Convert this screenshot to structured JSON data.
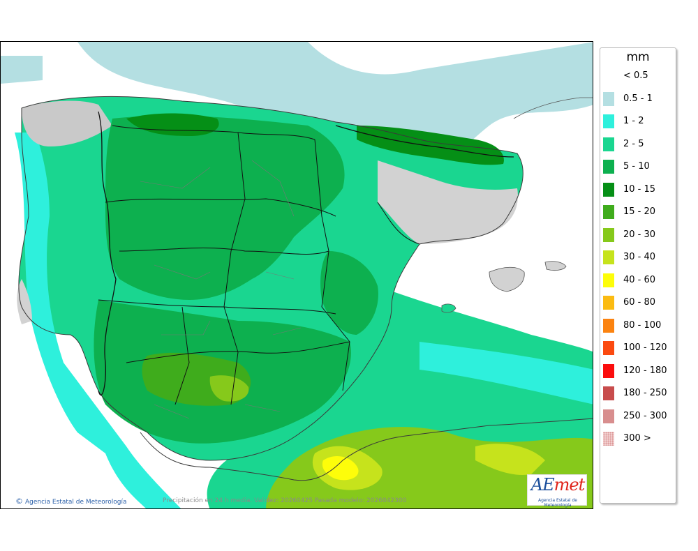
{
  "legend": {
    "unit": "mm",
    "classes": [
      {
        "label": "< 0.5",
        "color": "#ffffff"
      },
      {
        "label": "0.5 - 1",
        "color": "#b4dfe2"
      },
      {
        "label": "1 - 2",
        "color": "#2ef0dc"
      },
      {
        "label": "2 - 5",
        "color": "#1ad690"
      },
      {
        "label": "5 - 10",
        "color": "#0db04f"
      },
      {
        "label": "10 - 15",
        "color": "#058f16"
      },
      {
        "label": "15 - 20",
        "color": "#3fac1c"
      },
      {
        "label": "20 - 30",
        "color": "#86c91b"
      },
      {
        "label": "30 - 40",
        "color": "#c6e31c"
      },
      {
        "label": "40 - 60",
        "color": "#fdfd0a"
      },
      {
        "label": "60 - 80",
        "color": "#fbbb12"
      },
      {
        "label": "80 - 100",
        "color": "#fb8310"
      },
      {
        "label": "100 - 120",
        "color": "#fb4a10"
      },
      {
        "label": "120 - 180",
        "color": "#fb0d0d"
      },
      {
        "label": "180 - 250",
        "color": "#c84c4c"
      },
      {
        "label": "250 - 300",
        "color": "#d88e8e"
      },
      {
        "label": "300 >",
        "color": "#f2d0d0"
      }
    ]
  },
  "footer": {
    "credit_symbol": "©",
    "credit": "Agencia Estatal de Meteorología",
    "validity": "Precipitación en 24 h media. Validez: 20260425 Pasada modelo: 2026042300"
  },
  "logo": {
    "word_a": "AE",
    "word_b": "met",
    "subtitle": "Agencia Estatal de Meteorología"
  }
}
